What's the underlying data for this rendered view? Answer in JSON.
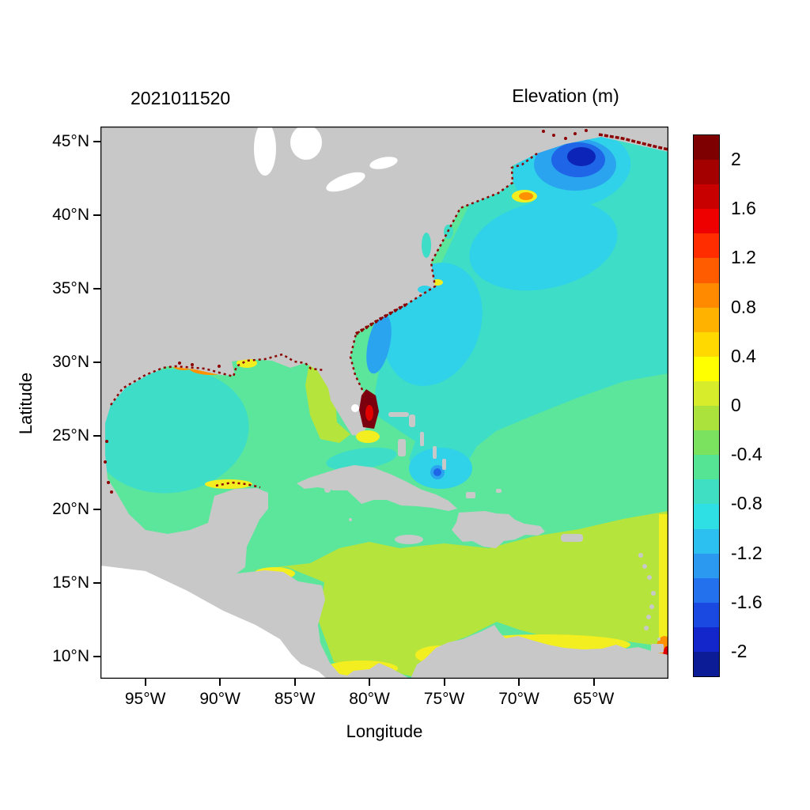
{
  "titles": {
    "timestamp": "2021011520",
    "colorbar_title": "Elevation (m)"
  },
  "axes": {
    "x_label": "Longitude",
    "y_label": "Latitude",
    "x_ticks": [
      {
        "label": "95°W",
        "lon": -95
      },
      {
        "label": "90°W",
        "lon": -90
      },
      {
        "label": "85°W",
        "lon": -85
      },
      {
        "label": "80°W",
        "lon": -80
      },
      {
        "label": "75°W",
        "lon": -75
      },
      {
        "label": "70°W",
        "lon": -70
      },
      {
        "label": "65°W",
        "lon": -65
      }
    ],
    "y_ticks": [
      {
        "label": "45°N",
        "lat": 45
      },
      {
        "label": "40°N",
        "lat": 40
      },
      {
        "label": "35°N",
        "lat": 35
      },
      {
        "label": "30°N",
        "lat": 30
      },
      {
        "label": "25°N",
        "lat": 25
      },
      {
        "label": "20°N",
        "lat": 20
      },
      {
        "label": "15°N",
        "lat": 15
      },
      {
        "label": "10°N",
        "lat": 10
      }
    ]
  },
  "colorbar": {
    "tick_values": [
      2,
      1.6,
      1.2,
      0.8,
      0.4,
      0,
      -0.4,
      -0.8,
      -1.2,
      -1.6,
      -2
    ],
    "value_min": -2.2,
    "value_max": 2.2,
    "cell_step": 0.2,
    "colors_top_to_bottom": [
      "#7f0000",
      "#a50000",
      "#c80000",
      "#ee0000",
      "#ff2d00",
      "#ff5c00",
      "#ff8a00",
      "#ffb300",
      "#ffd900",
      "#ffff00",
      "#d7ec2a",
      "#ace23c",
      "#7be25f",
      "#54e494",
      "#3fdfc3",
      "#2edfe4",
      "#2bc0f0",
      "#2b99f0",
      "#2371ec",
      "#1a49e2",
      "#1226cc",
      "#0b1c96"
    ]
  },
  "colors": {
    "background": "#ffffff",
    "frame": "#000000",
    "land": "#c8c8c8",
    "lake": "#ffffff",
    "pacific_nodata": "#ffffff",
    "ocean_green": "#5ce69c",
    "ocean_turquoise": "#3eddc8",
    "ocean_cyan": "#2fd2e8",
    "ocean_lightblue": "#2ba4f0",
    "ocean_blue": "#1f65e8",
    "ocean_navy": "#0c24b8",
    "ocean_yellowgreen": "#b5e43c",
    "ocean_yellow": "#f2ee20",
    "ocean_amber": "#ffbb00",
    "ocean_orange": "#ff9100",
    "ocean_red": "#e00000",
    "ocean_darkred": "#7a0010",
    "coast_speckle": "#8b0000"
  },
  "chart_data": {
    "type": "heatmap",
    "title": "Elevation (m)",
    "run_timestamp": "2021011520",
    "xlabel": "Longitude",
    "ylabel": "Latitude",
    "xlim_deg": [
      -98,
      -60
    ],
    "ylim_deg": [
      8.5,
      46
    ],
    "x_tick_labels": [
      "95°W",
      "90°W",
      "85°W",
      "80°W",
      "75°W",
      "70°W",
      "65°W"
    ],
    "y_tick_labels": [
      "10°N",
      "15°N",
      "20°N",
      "25°N",
      "30°N",
      "35°N",
      "40°N",
      "45°N"
    ],
    "grid": false,
    "legend_position": "right-colorbar",
    "colorbar": {
      "label": "Elevation (m)",
      "tick_values": [
        2,
        1.6,
        1.2,
        0.8,
        0.4,
        0,
        -0.4,
        -0.8,
        -1.2,
        -1.6,
        -2
      ],
      "range": [
        -2.2,
        2.2
      ],
      "discrete_step": 0.2
    },
    "features": [
      {
        "name": "Northwest Atlantic open ocean",
        "approx_value_m": -0.5,
        "extent": "27N-45N east of US coast"
      },
      {
        "name": "Gulf of Maine / Bay of Fundy low",
        "lat": 43.3,
        "lon": -66.6,
        "approx_value_m": -2.0
      },
      {
        "name": "Nantucket Shoals high spot",
        "lat": 41.4,
        "lon": -69.8,
        "approx_value_m": 0.7
      },
      {
        "name": "South Florida extreme high",
        "lat": 26.9,
        "lon": -80.2,
        "approx_value_m": 2.2
      },
      {
        "name": "West Florida shelf band",
        "lat": 27,
        "lon": -83,
        "approx_value_m": 0.2
      },
      {
        "name": "Louisiana-Mississippi shelf high",
        "lat": 29.7,
        "lon": -90.5,
        "approx_value_m": 0.9
      },
      {
        "name": "Gulf of Mexico interior",
        "approx_value_m": -0.3
      },
      {
        "name": "Central Atlantic 20N-27N",
        "approx_value_m": -0.2
      },
      {
        "name": "Caribbean Sea north",
        "approx_value_m": 0.0
      },
      {
        "name": "Caribbean Sea south of 18N",
        "approx_value_m": 0.2
      },
      {
        "name": "Southern coastal band (Colombia/Venezuela/Panama)",
        "approx_value_m": 0.45
      },
      {
        "name": "Southeast corner orange patch",
        "lat": 10.5,
        "lon": -60.3,
        "approx_value_m": 1.0
      },
      {
        "name": "Intertidal coastal speckles (US Gulf/East coasts, Yucatan, Fundy)",
        "approx_value_m": 2.2
      },
      {
        "name": "Land mask",
        "value": "gray"
      },
      {
        "name": "Pacific side",
        "value": "no data (white)"
      }
    ]
  }
}
